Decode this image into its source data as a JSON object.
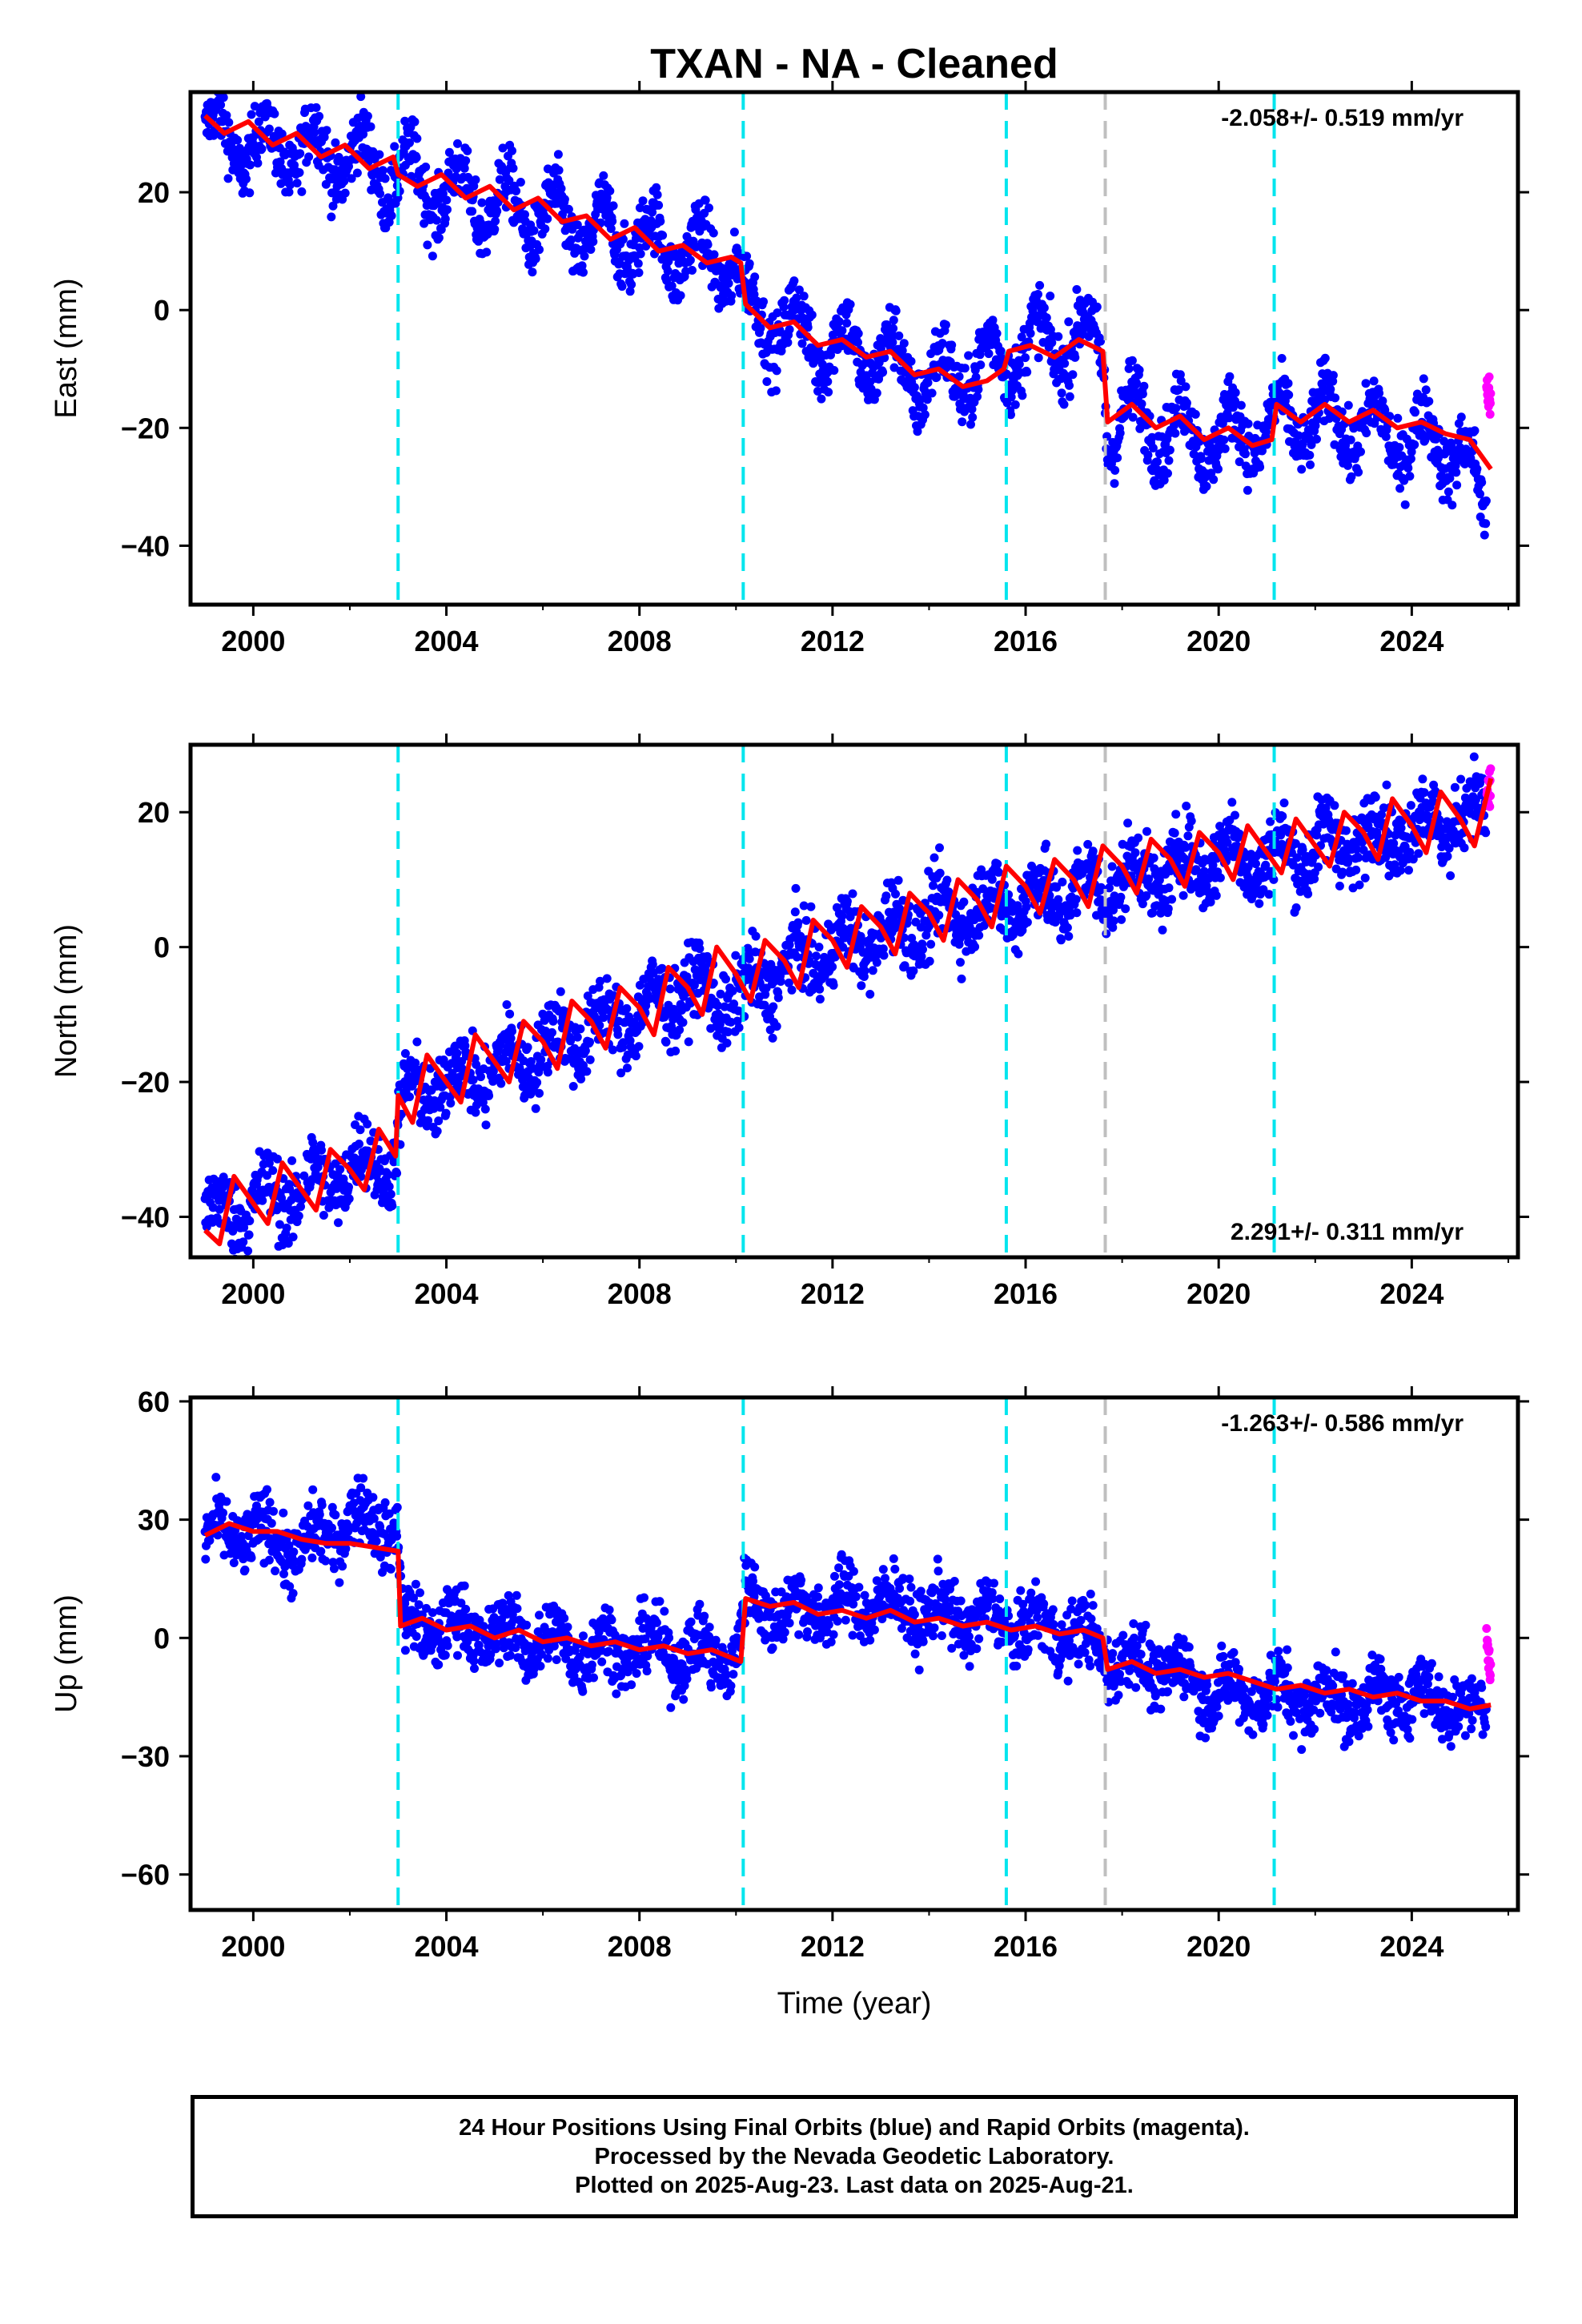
{
  "title": "TXAN  - NA - Cleaned",
  "colors": {
    "final_orbits": "#0000ff",
    "rapid_orbits": "#ff00ff",
    "model": "#ff0000",
    "equipment_change": "#00e5ee",
    "other_event": "#bfbfbf"
  },
  "x_axis": {
    "label": "Time (year)",
    "range": [
      1998.7,
      2026.2
    ],
    "ticks": [
      2000,
      2004,
      2008,
      2012,
      2016,
      2020,
      2024
    ],
    "tick_labels": [
      "2000",
      "2004",
      "2008",
      "2012",
      "2016",
      "2020",
      "2024"
    ]
  },
  "events": {
    "equipment_changes": [
      2003.0,
      2010.15,
      2015.6,
      2021.15
    ],
    "other": [
      2017.65
    ]
  },
  "chart_data": [
    {
      "type": "scatter",
      "panel": "east",
      "ylabel": "East (mm)",
      "ylim": [
        -50,
        37
      ],
      "yticks": [
        -40,
        -20,
        0,
        20
      ],
      "ytick_labels": [
        "−40",
        "−20",
        "0",
        "20"
      ],
      "rate_text": "-2.058+/- 0.519 mm/yr",
      "rate_position": "top-right",
      "data_start": 1999.0,
      "rapid_start": 2025.55,
      "data_end": 2025.64,
      "series": [
        {
          "name": "Final Orbits (blue)",
          "x": [
            1999.0,
            2000.0,
            2001.0,
            2002.0,
            2003.0,
            2004.0,
            2005.0,
            2006.0,
            2007.0,
            2008.0,
            2009.0,
            2010.0,
            2010.2,
            2011.0,
            2012.0,
            2013.0,
            2014.0,
            2015.0,
            2015.6,
            2016.0,
            2017.0,
            2017.6,
            2017.7,
            2018.0,
            2019.0,
            2020.0,
            2021.0,
            2021.2,
            2022.0,
            2023.0,
            2024.0,
            2025.0,
            2025.5
          ],
          "y": [
            30,
            28,
            27,
            26,
            23,
            20,
            18,
            16,
            13,
            12,
            10,
            8,
            0,
            -3,
            -6,
            -8,
            -12,
            -10,
            -8,
            -6,
            -5,
            -6,
            -20,
            -18,
            -20,
            -22,
            -20,
            -20,
            -18,
            -20,
            -22,
            -23,
            -35
          ]
        },
        {
          "name": "Rapid Orbits (magenta)",
          "x": [
            2025.55,
            2025.64
          ],
          "y": [
            -12,
            -17
          ]
        }
      ],
      "model": {
        "x": [
          1999.0,
          1999.4,
          1999.9,
          2000.4,
          2000.9,
          2001.4,
          2001.9,
          2002.4,
          2002.9,
          2003.0,
          2003.4,
          2003.9,
          2004.4,
          2004.9,
          2005.4,
          2005.9,
          2006.4,
          2006.9,
          2007.4,
          2007.9,
          2008.4,
          2008.9,
          2009.4,
          2009.9,
          2010.1,
          2010.2,
          2010.7,
          2011.2,
          2011.7,
          2012.2,
          2012.7,
          2013.2,
          2013.7,
          2014.2,
          2014.7,
          2015.2,
          2015.55,
          2015.65,
          2016.1,
          2016.6,
          2017.1,
          2017.6,
          2017.7,
          2018.2,
          2018.7,
          2019.2,
          2019.7,
          2020.2,
          2020.7,
          2021.1,
          2021.2,
          2021.7,
          2022.2,
          2022.7,
          2023.2,
          2023.7,
          2024.2,
          2024.7,
          2025.2,
          2025.64
        ],
        "y": [
          33,
          30,
          32,
          28,
          30,
          26,
          28,
          24,
          26,
          23,
          21,
          23,
          19,
          21,
          17,
          19,
          15,
          16,
          12,
          14,
          10,
          11,
          8,
          9,
          8,
          1,
          -3,
          -2,
          -6,
          -5,
          -8,
          -7,
          -11,
          -10,
          -13,
          -12,
          -10,
          -7,
          -6,
          -8,
          -5,
          -7,
          -19,
          -16,
          -20,
          -18,
          -22,
          -20,
          -23,
          -22,
          -16,
          -19,
          -16,
          -19,
          -17,
          -20,
          -19,
          -21,
          -22,
          -27
        ]
      }
    },
    {
      "type": "scatter",
      "panel": "north",
      "ylabel": "North (mm)",
      "ylim": [
        -46,
        30
      ],
      "yticks": [
        -40,
        -20,
        0,
        20
      ],
      "ytick_labels": [
        "−40",
        "−20",
        "0",
        "20"
      ],
      "rate_text": "2.291+/- 0.311 mm/yr",
      "rate_position": "bottom-right",
      "data_start": 1999.0,
      "rapid_start": 2025.55,
      "data_end": 2025.64,
      "series": [
        {
          "name": "Final Orbits (blue)",
          "x": [
            1999.0,
            2000.0,
            2001.0,
            2002.0,
            2002.9,
            2003.1,
            2004.0,
            2005.0,
            2006.0,
            2007.0,
            2008.0,
            2009.0,
            2010.0,
            2011.0,
            2012.0,
            2013.0,
            2014.0,
            2015.0,
            2016.0,
            2017.0,
            2018.0,
            2019.0,
            2020.0,
            2021.0,
            2022.0,
            2023.0,
            2024.0,
            2025.0,
            2025.5
          ],
          "y": [
            -40,
            -38,
            -36,
            -33,
            -31,
            -23,
            -20,
            -18,
            -15,
            -12,
            -10,
            -6,
            -8,
            -3,
            0,
            2,
            4,
            6,
            7,
            8,
            10,
            11,
            14,
            13,
            15,
            16,
            18,
            19,
            20
          ]
        },
        {
          "name": "Rapid Orbits (magenta)",
          "x": [
            2025.55,
            2025.64
          ],
          "y": [
            22,
            24
          ]
        }
      ],
      "model": {
        "x": [
          1999.0,
          1999.3,
          1999.6,
          2000.0,
          2000.3,
          2000.6,
          2001.0,
          2001.3,
          2001.6,
          2002.0,
          2002.3,
          2002.6,
          2002.95,
          2003.0,
          2003.3,
          2003.6,
          2004.0,
          2004.3,
          2004.6,
          2005.0,
          2005.3,
          2005.6,
          2006.0,
          2006.3,
          2006.6,
          2007.0,
          2007.3,
          2007.6,
          2008.0,
          2008.3,
          2008.6,
          2009.0,
          2009.3,
          2009.6,
          2010.0,
          2010.3,
          2010.6,
          2011.0,
          2011.3,
          2011.6,
          2012.0,
          2012.3,
          2012.6,
          2013.0,
          2013.3,
          2013.6,
          2014.0,
          2014.3,
          2014.6,
          2015.0,
          2015.3,
          2015.6,
          2016.0,
          2016.3,
          2016.6,
          2017.0,
          2017.3,
          2017.6,
          2018.0,
          2018.3,
          2018.6,
          2019.0,
          2019.3,
          2019.6,
          2020.0,
          2020.3,
          2020.6,
          2021.0,
          2021.3,
          2021.6,
          2022.0,
          2022.3,
          2022.6,
          2023.0,
          2023.3,
          2023.6,
          2024.0,
          2024.3,
          2024.6,
          2025.0,
          2025.3,
          2025.64
        ],
        "y": [
          -42,
          -44,
          -34,
          -38,
          -41,
          -32,
          -36,
          -39,
          -30,
          -33,
          -36,
          -27,
          -31,
          -22,
          -26,
          -16,
          -20,
          -23,
          -13,
          -17,
          -20,
          -11,
          -14,
          -18,
          -8,
          -11,
          -15,
          -6,
          -9,
          -13,
          -3,
          -6,
          -10,
          0,
          -4,
          -8,
          1,
          -2,
          -6,
          4,
          1,
          -3,
          6,
          3,
          -1,
          8,
          5,
          1,
          10,
          7,
          3,
          12,
          9,
          5,
          13,
          10,
          6,
          15,
          12,
          8,
          16,
          13,
          9,
          17,
          14,
          10,
          18,
          14,
          11,
          19,
          15,
          12,
          20,
          17,
          13,
          22,
          18,
          14,
          23,
          19,
          15,
          25
        ]
      }
    },
    {
      "type": "scatter",
      "panel": "up",
      "ylabel": "Up (mm)",
      "ylim": [
        -69,
        61
      ],
      "yticks": [
        -60,
        -30,
        0,
        30,
        60
      ],
      "ytick_labels": [
        "−60",
        "−30",
        "0",
        "30",
        "60"
      ],
      "rate_text": "-1.263+/- 0.586 mm/yr",
      "rate_position": "top-right",
      "data_start": 1999.0,
      "rapid_start": 2025.55,
      "data_end": 2025.64,
      "series": [
        {
          "name": "Final Orbits (blue)",
          "x": [
            1999.0,
            2000.0,
            2001.0,
            2002.0,
            2003.0,
            2003.1,
            2004.0,
            2005.0,
            2006.0,
            2007.0,
            2008.0,
            2009.0,
            2010.0,
            2010.2,
            2011.0,
            2012.0,
            2013.0,
            2014.0,
            2015.0,
            2016.0,
            2017.0,
            2017.7,
            2018.0,
            2019.0,
            2020.0,
            2021.0,
            2022.0,
            2023.0,
            2024.0,
            2025.0,
            2025.5
          ],
          "y": [
            25,
            27,
            22,
            30,
            28,
            2,
            3,
            1,
            -1,
            -3,
            -2,
            -4,
            -5,
            10,
            7,
            8,
            9,
            6,
            5,
            3,
            1,
            -4,
            -6,
            -8,
            -14,
            -14,
            -15,
            -16,
            -14,
            -17,
            -19
          ]
        },
        {
          "name": "Rapid Orbits (magenta)",
          "x": [
            2025.55,
            2025.64
          ],
          "y": [
            0,
            -10
          ]
        }
      ],
      "model": {
        "x": [
          1999.0,
          1999.5,
          2000.0,
          2000.5,
          2001.0,
          2001.5,
          2002.0,
          2002.5,
          2003.0,
          2003.05,
          2003.5,
          2004.0,
          2004.5,
          2005.0,
          2005.5,
          2006.0,
          2006.5,
          2007.0,
          2007.5,
          2008.0,
          2008.5,
          2009.0,
          2009.5,
          2010.1,
          2010.2,
          2010.7,
          2011.2,
          2011.7,
          2012.2,
          2012.7,
          2013.2,
          2013.7,
          2014.2,
          2014.7,
          2015.2,
          2015.7,
          2016.2,
          2016.7,
          2017.2,
          2017.6,
          2017.7,
          2018.2,
          2018.7,
          2019.2,
          2019.7,
          2020.2,
          2020.7,
          2021.2,
          2021.7,
          2022.2,
          2022.7,
          2023.2,
          2023.7,
          2024.2,
          2024.7,
          2025.2,
          2025.64
        ],
        "y": [
          26,
          29,
          27,
          27,
          25,
          24,
          24,
          23,
          22,
          3,
          5,
          2,
          3,
          0,
          2,
          -1,
          0,
          -2,
          -1,
          -3,
          -2,
          -4,
          -3,
          -6,
          10,
          8,
          9,
          6,
          7,
          5,
          7,
          4,
          5,
          3,
          4,
          2,
          3,
          1,
          2,
          0,
          -8,
          -6,
          -9,
          -8,
          -10,
          -9,
          -11,
          -13,
          -12,
          -14,
          -13,
          -15,
          -14,
          -16,
          -16,
          -18,
          -17
        ]
      }
    }
  ],
  "footer": {
    "line1": "24 Hour Positions Using Final Orbits (blue) and Rapid Orbits (magenta).",
    "line2": "Processed by the Nevada Geodetic Laboratory.",
    "line3": "Plotted on 2025-Aug-23. Last data on 2025-Aug-21."
  }
}
